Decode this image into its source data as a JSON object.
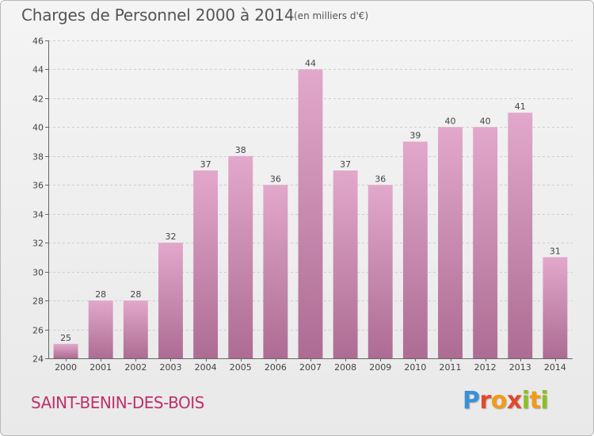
{
  "header": {
    "title": "Charges de Personnel 2000 à 2014",
    "unit": "(en milliers d'€)"
  },
  "footer": {
    "commune": "SAINT-BENIN-DES-BOIS",
    "logo_letters": [
      "P",
      "r",
      "o",
      "x",
      "i",
      "t",
      "i"
    ]
  },
  "colors": {
    "bar_top": "#e2a8cb",
    "bar_bottom": "#ad6c93",
    "commune": "#c0306a",
    "grid": "#cfcfcf"
  },
  "chart_data": {
    "type": "bar",
    "title": "Charges de Personnel 2000 à 2014",
    "xlabel": "",
    "ylabel": "",
    "categories": [
      "2000",
      "2001",
      "2002",
      "2003",
      "2004",
      "2005",
      "2006",
      "2007",
      "2008",
      "2009",
      "2010",
      "2011",
      "2012",
      "2013",
      "2014"
    ],
    "values": [
      25,
      28,
      28,
      32,
      37,
      38,
      36,
      44,
      37,
      36,
      39,
      40,
      40,
      41,
      31
    ],
    "ylim": [
      24,
      46
    ],
    "yticks": [
      24,
      26,
      28,
      30,
      32,
      34,
      36,
      38,
      40,
      42,
      44,
      46
    ],
    "grid": true,
    "legend": "none"
  }
}
